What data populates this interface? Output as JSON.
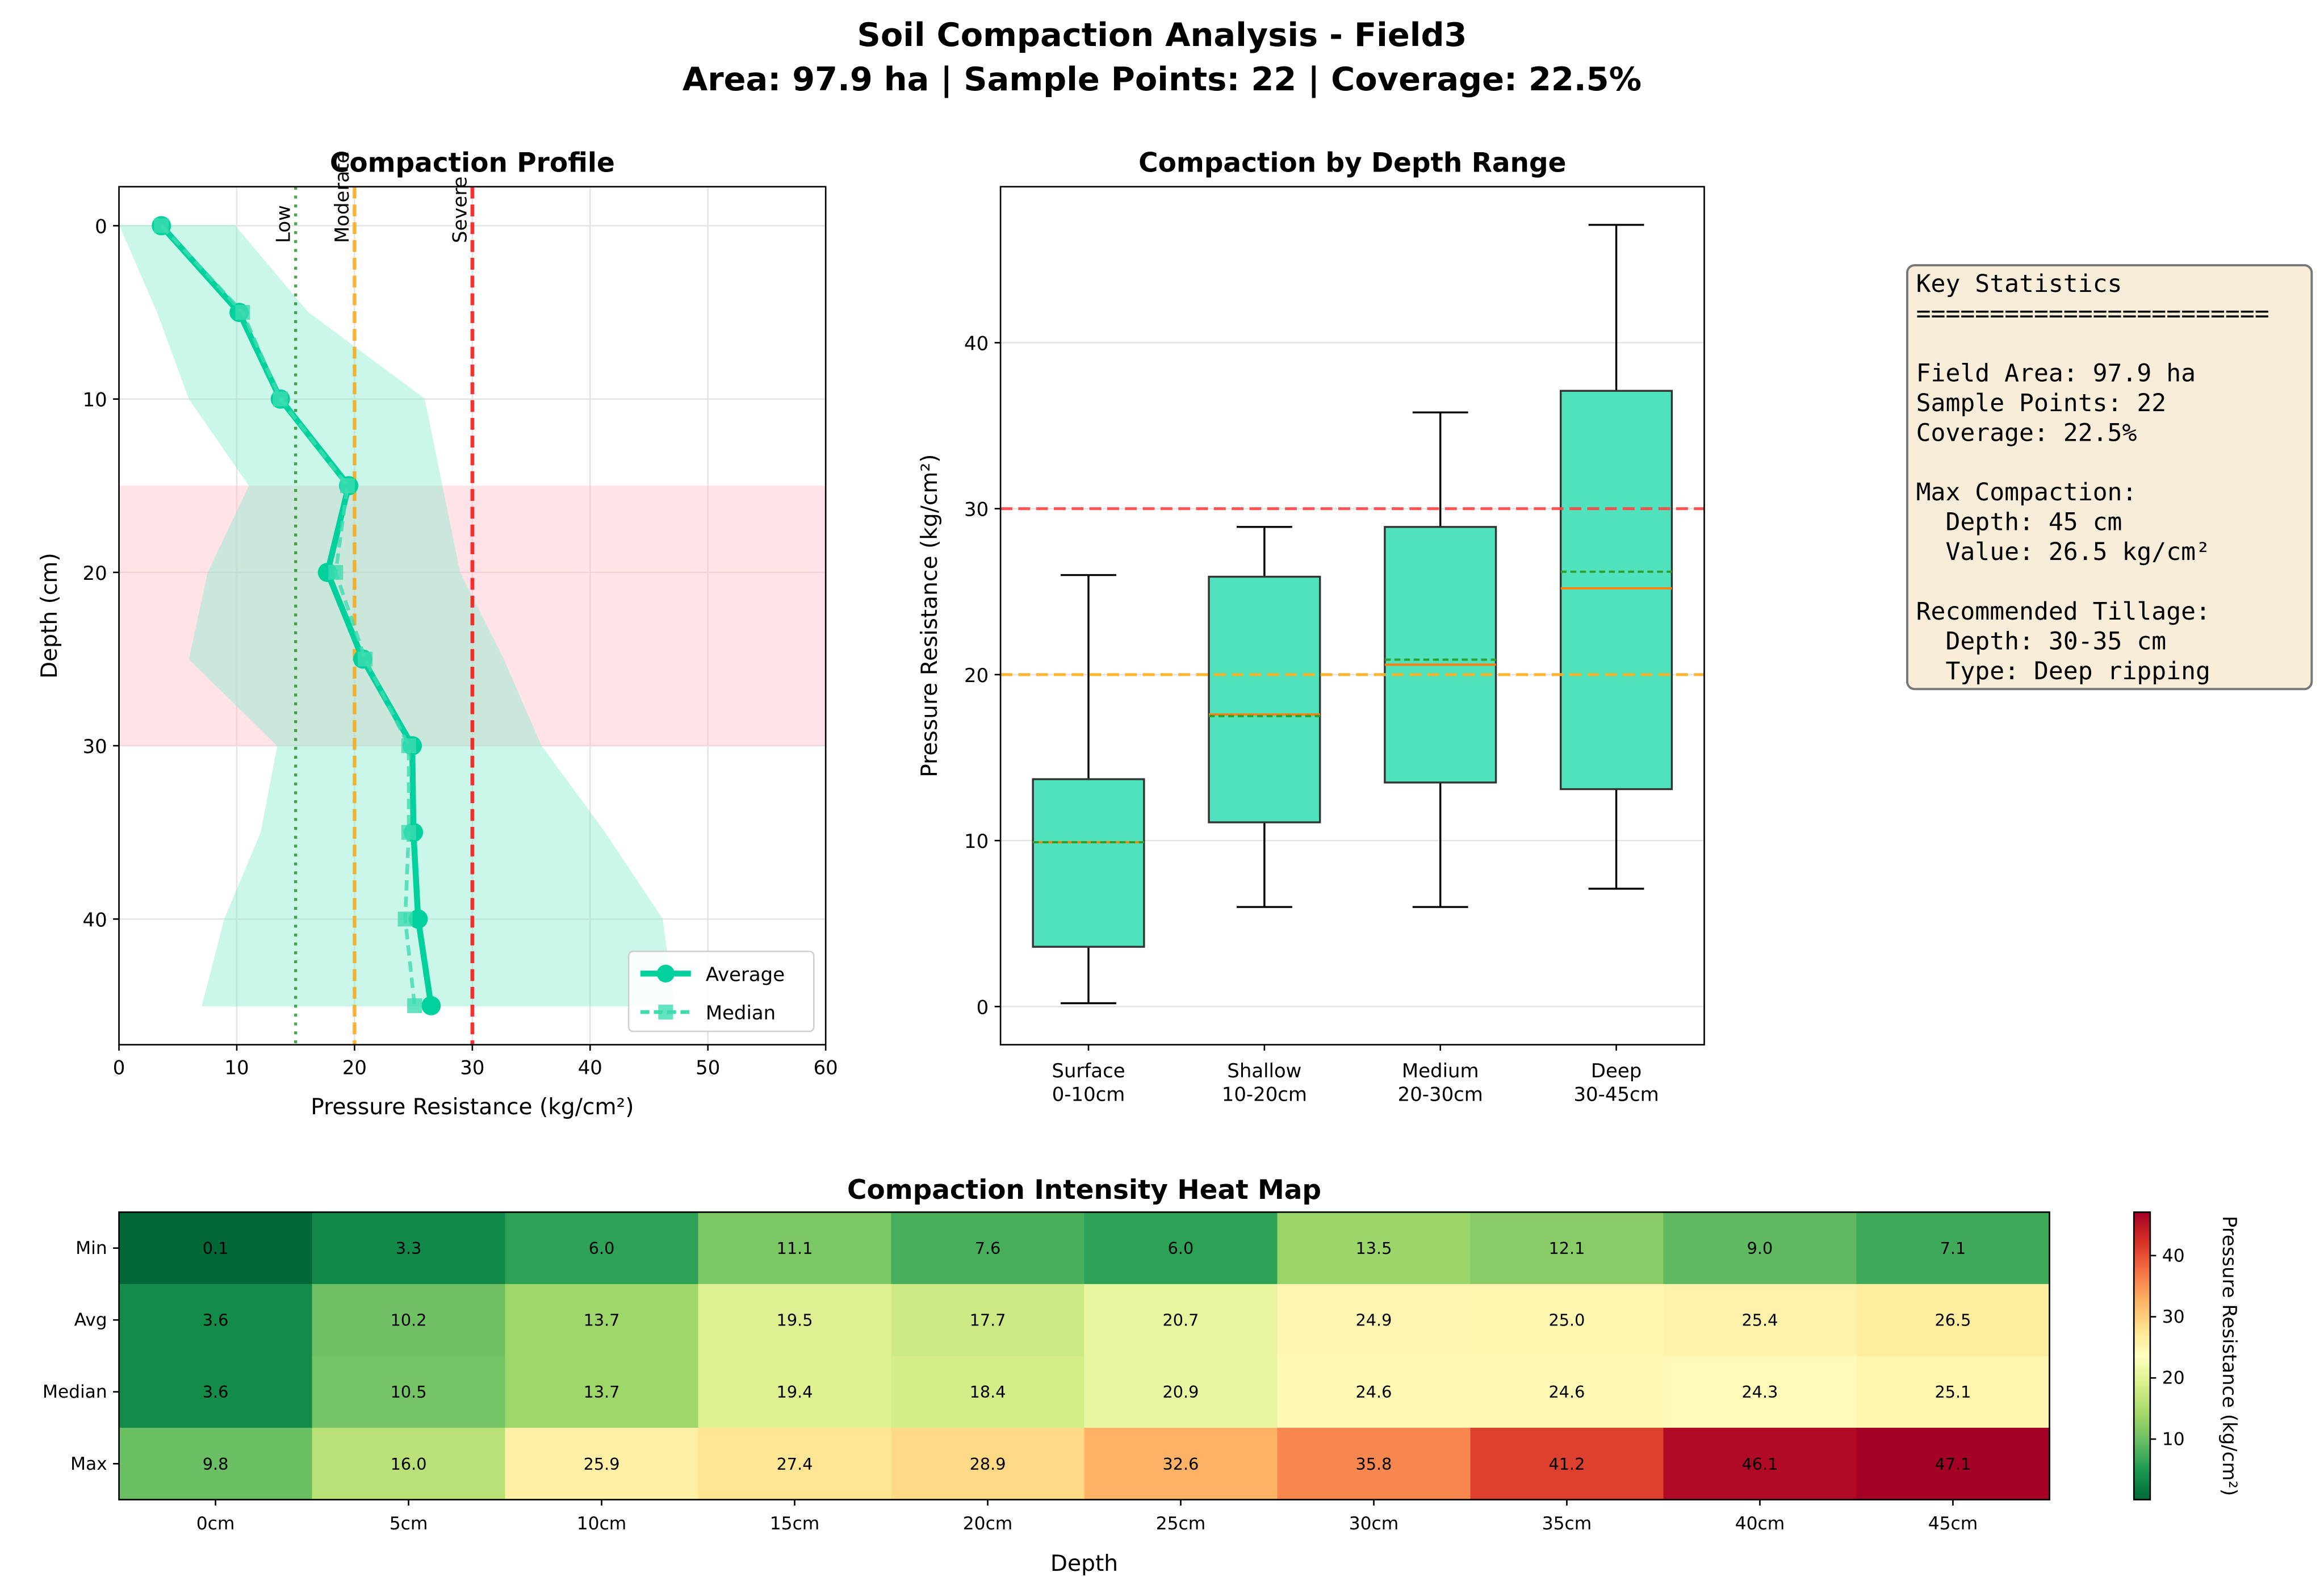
{
  "figure": {
    "title_line1": "Soil Compaction Analysis - Field3",
    "title_line2": "Area: 97.9 ha | Sample Points: 22 | Coverage: 22.5%"
  },
  "chart_data": [
    {
      "type": "line",
      "title": "Compaction Profile",
      "xlabel": "Pressure Resistance (kg/cm²)",
      "ylabel": "Depth (cm)",
      "xlim": [
        0,
        60
      ],
      "ylim": [
        47.25,
        -2.25
      ],
      "x_ticks": [
        0,
        10,
        20,
        30,
        40,
        50,
        60
      ],
      "y_ticks": [
        0,
        10,
        20,
        30,
        40
      ],
      "grid": true,
      "depth": [
        0,
        5,
        10,
        15,
        20,
        25,
        30,
        35,
        40,
        45
      ],
      "series": [
        {
          "name": "Average",
          "values": [
            3.6,
            10.2,
            13.7,
            19.5,
            17.7,
            20.7,
            24.9,
            25.0,
            25.4,
            26.5
          ],
          "color": "#00d09c",
          "marker": "circle",
          "style": "solid"
        },
        {
          "name": "Median",
          "values": [
            3.6,
            10.5,
            13.7,
            19.4,
            18.4,
            20.9,
            24.6,
            24.6,
            24.3,
            25.1
          ],
          "color": "#3ddcb0",
          "marker": "square",
          "style": "dashed"
        }
      ],
      "range_fill": {
        "min": [
          0.1,
          3.3,
          6.0,
          11.1,
          7.6,
          6.0,
          13.5,
          12.1,
          9.0,
          7.1
        ],
        "max": [
          9.8,
          16.0,
          25.9,
          27.4,
          28.9,
          32.6,
          35.8,
          41.2,
          46.1,
          47.1
        ],
        "color": "#8eecd2"
      },
      "highlight_band": {
        "from": 15,
        "to": 30,
        "color": "#ffc0c8"
      },
      "thresholds": [
        {
          "label": "Low",
          "value": 15,
          "color": "#228b22",
          "style": "dotted"
        },
        {
          "label": "Moderate",
          "value": 20,
          "color": "#ffa500",
          "style": "dashed"
        },
        {
          "label": "Severe",
          "value": 30,
          "color": "#ff0000",
          "style": "dashed"
        }
      ],
      "legend": "lower-right"
    },
    {
      "type": "box",
      "title": "Compaction by Depth Range",
      "ylabel": "Pressure Resistance (kg/cm²)",
      "ylim": [
        -2.3,
        49.4
      ],
      "y_ticks": [
        0,
        10,
        20,
        30,
        40
      ],
      "grid": true,
      "categories": [
        [
          "Surface",
          "0-10cm"
        ],
        [
          "Shallow",
          "10-20cm"
        ],
        [
          "Medium",
          "20-30cm"
        ],
        [
          "Deep",
          "30-45cm"
        ]
      ],
      "boxes": [
        {
          "whislo": 0.2,
          "q1": 3.6,
          "median": 9.9,
          "mean": 9.9,
          "q3": 13.7,
          "whishi": 26.0
        },
        {
          "whislo": 6.0,
          "q1": 11.1,
          "median": 17.6,
          "mean": 17.5,
          "q3": 25.9,
          "whishi": 28.9
        },
        {
          "whislo": 6.0,
          "q1": 13.5,
          "median": 20.6,
          "mean": 20.9,
          "q3": 28.9,
          "whishi": 35.8
        },
        {
          "whislo": 7.1,
          "q1": 13.1,
          "median": 25.2,
          "mean": 26.2,
          "q3": 37.1,
          "whishi": 47.1
        }
      ],
      "box_color": "#50e2bd",
      "reference_lines": [
        {
          "value": 30,
          "color": "#ff4444"
        },
        {
          "value": 20,
          "color": "#ffb020"
        }
      ]
    },
    {
      "type": "heatmap",
      "title": "Compaction Intensity Heat Map",
      "xlabel": "Depth",
      "columns": [
        "0cm",
        "5cm",
        "10cm",
        "15cm",
        "20cm",
        "25cm",
        "30cm",
        "35cm",
        "40cm",
        "45cm"
      ],
      "rows": [
        "Min",
        "Avg",
        "Median",
        "Max"
      ],
      "values": [
        [
          0.1,
          3.3,
          6.0,
          11.1,
          7.6,
          6.0,
          13.5,
          12.1,
          9.0,
          7.1
        ],
        [
          3.6,
          10.2,
          13.7,
          19.5,
          17.7,
          20.7,
          24.9,
          25.0,
          25.4,
          26.5
        ],
        [
          3.6,
          10.5,
          13.7,
          19.4,
          18.4,
          20.9,
          24.6,
          24.6,
          24.3,
          25.1
        ],
        [
          9.8,
          16.0,
          25.9,
          27.4,
          28.9,
          32.6,
          35.8,
          41.2,
          46.1,
          47.1
        ]
      ],
      "colormap": "RdYlGn_r",
      "vmin": 0.1,
      "vmax": 47.1,
      "colorbar_label": "Pressure Resistance (kg/cm²)",
      "colorbar_ticks": [
        10,
        20,
        30,
        40
      ]
    }
  ],
  "stats_box": {
    "lines": [
      "Key Statistics",
      "========================",
      "",
      "Field Area: 97.9 ha",
      "Sample Points: 22",
      "Coverage: 22.5%",
      "",
      "Max Compaction:",
      "  Depth: 45 cm",
      "  Value: 26.5 kg/cm²",
      "",
      "Recommended Tillage:",
      "  Depth: 30-35 cm",
      "  Type: Deep ripping"
    ],
    "background": "#f8edd9"
  }
}
